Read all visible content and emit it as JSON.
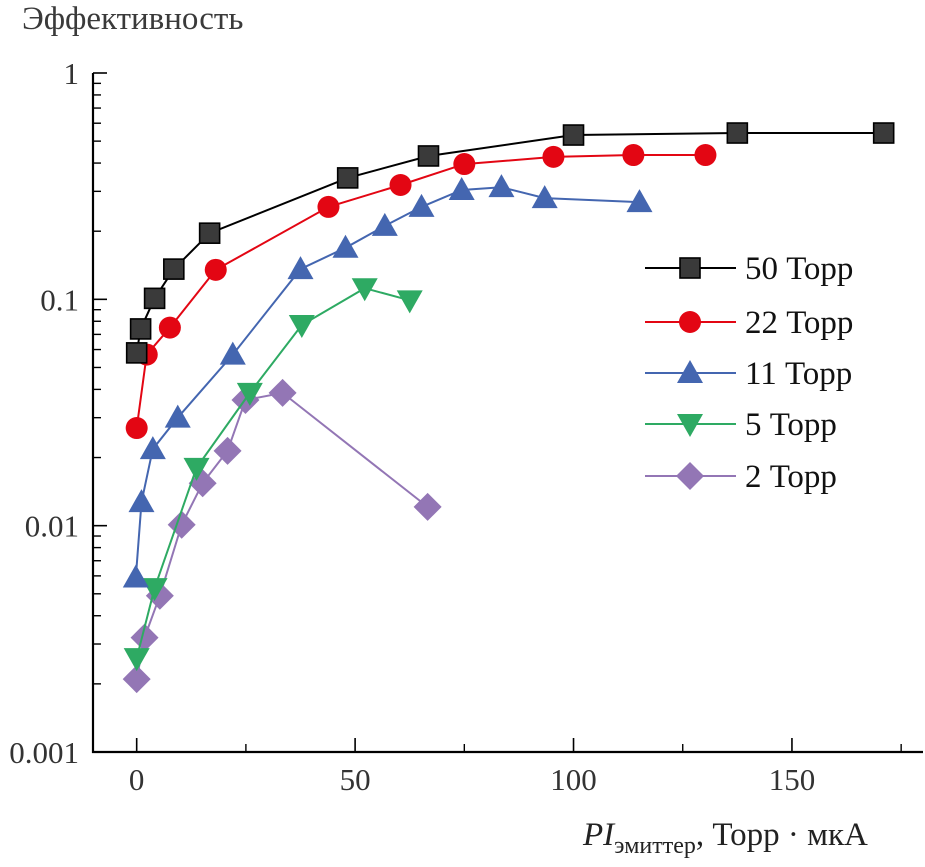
{
  "chart_data": {
    "type": "line",
    "title": "Эффективность",
    "ylabel": "Эффективность",
    "xlabel": {
      "main": "PI",
      "subscript": "эмиттер",
      "units": ", Торр · мкА"
    },
    "x_scale": "linear",
    "y_scale": "log",
    "xlim": [
      -10,
      180
    ],
    "ylim": [
      0.001,
      1
    ],
    "x_ticks": [
      0,
      50,
      100,
      150
    ],
    "x_tick_labels": [
      "0",
      "50",
      "100",
      "150"
    ],
    "x_minor_ticks": [
      25,
      75,
      125,
      175
    ],
    "y_ticks": [
      1,
      0.1,
      0.01,
      0.001
    ],
    "y_tick_labels": [
      "1",
      "0.1",
      "0.01",
      "0.001"
    ],
    "grid": false,
    "legend_position": "right",
    "series": [
      {
        "name": "50 Торр",
        "marker": "square",
        "color": "#000000",
        "marker_fill": "#3a3a3a",
        "x": [
          0,
          0.9,
          4.1,
          8.5,
          16.7,
          48.3,
          66.8,
          100,
          137.5,
          171
        ],
        "y": [
          0.058,
          0.074,
          0.101,
          0.136,
          0.196,
          0.344,
          0.43,
          0.532,
          0.543,
          0.543
        ]
      },
      {
        "name": "22 Торр",
        "marker": "circle",
        "color": "#e30613",
        "marker_fill": "#e30613",
        "x": [
          0,
          2.3,
          7.6,
          18.1,
          43.9,
          60.4,
          75,
          95.4,
          113.7,
          130.2
        ],
        "y": [
          0.027,
          0.057,
          0.075,
          0.135,
          0.256,
          0.32,
          0.396,
          0.426,
          0.434,
          0.434
        ]
      },
      {
        "name": "11 Торр",
        "marker": "triangle-up",
        "color": "#4466b0",
        "marker_fill": "#4466b0",
        "x": [
          -0.2,
          1.1,
          3.7,
          9.4,
          22,
          37.5,
          47.8,
          56.8,
          65.2,
          74.4,
          83.5,
          93.4,
          115.1
        ],
        "y": [
          0.0059,
          0.0127,
          0.0218,
          0.03,
          0.057,
          0.136,
          0.169,
          0.211,
          0.256,
          0.304,
          0.313,
          0.28,
          0.269
        ]
      },
      {
        "name": "5 Торр",
        "marker": "triangle-down",
        "color": "#2eaa63",
        "marker_fill": "#2eaa63",
        "x": [
          0,
          4.1,
          13.7,
          25.9,
          37.8,
          52.2,
          62.5
        ],
        "y": [
          0.0026,
          0.0053,
          0.018,
          0.0386,
          0.077,
          0.112,
          0.099
        ]
      },
      {
        "name": "2 Торр",
        "marker": "diamond",
        "color": "#9376b5",
        "marker_fill": "#9376b5",
        "x": [
          0,
          1.8,
          5.3,
          10.3,
          15.1,
          20.8,
          24.9,
          33.4,
          66.6
        ],
        "y": [
          0.0021,
          0.0032,
          0.0049,
          0.0101,
          0.0154,
          0.0214,
          0.0359,
          0.0386,
          0.0121
        ]
      }
    ]
  }
}
